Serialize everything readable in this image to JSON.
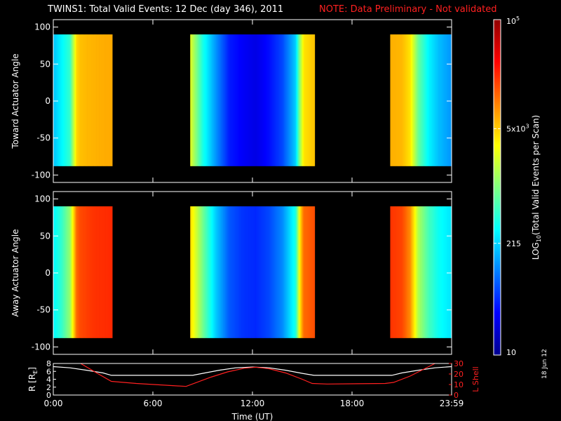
{
  "title": {
    "main": "TWINS1: Total Valid Events: 12 Dec (day 346), 2011",
    "note": "NOTE: Data Preliminary - Not validated"
  },
  "date_stamp": "18 Jun 12",
  "colors": {
    "note": "#ff2020",
    "r_line": "#ffffff",
    "l_shell_line": "#ff2020",
    "no_data": "#000000"
  },
  "chart_data": [
    {
      "type": "heatmap",
      "panel": "top",
      "ylabel": "Toward Actuator Angle",
      "ylim": [
        -110,
        110
      ],
      "yticks": [
        -100,
        -50,
        0,
        50,
        100
      ],
      "xlim": [
        0,
        24
      ],
      "x_unit": "hours",
      "y_data_range": [
        -88,
        90
      ],
      "data_intervals": [
        {
          "start": 0.0,
          "end": 3.55,
          "profile": [
            [
              0.0,
              180
            ],
            [
              0.5,
              300
            ],
            [
              1.0,
              500
            ],
            [
              1.4,
              4500
            ],
            [
              1.6,
              5500
            ],
            [
              2.0,
              6000
            ],
            [
              2.8,
              6500
            ],
            [
              3.55,
              6800
            ]
          ]
        },
        {
          "start": 8.25,
          "end": 15.75,
          "profile": [
            [
              8.25,
              2500
            ],
            [
              9.0,
              400
            ],
            [
              9.8,
              120
            ],
            [
              10.6,
              40
            ],
            [
              11.4,
              30
            ],
            [
              12.2,
              25
            ],
            [
              13.0,
              35
            ],
            [
              13.8,
              60
            ],
            [
              14.6,
              200
            ],
            [
              14.9,
              1500
            ],
            [
              15.1,
              4000
            ],
            [
              15.75,
              5500
            ]
          ]
        },
        {
          "start": 20.3,
          "end": 23.99,
          "profile": [
            [
              20.3,
              6500
            ],
            [
              21.0,
              6000
            ],
            [
              21.5,
              4000
            ],
            [
              22.0,
              800
            ],
            [
              22.6,
              300
            ],
            [
              23.2,
              180
            ],
            [
              23.99,
              120
            ]
          ]
        }
      ]
    },
    {
      "type": "heatmap",
      "panel": "bottom",
      "ylabel": "Away Actuator Angle",
      "ylim": [
        -110,
        110
      ],
      "yticks": [
        -100,
        -50,
        0,
        50,
        100
      ],
      "xlim": [
        0,
        24
      ],
      "x_unit": "hours",
      "y_data_range": [
        -88,
        90
      ],
      "data_intervals": [
        {
          "start": 0.0,
          "end": 3.55,
          "profile": [
            [
              0.0,
              300
            ],
            [
              0.5,
              500
            ],
            [
              1.0,
              1200
            ],
            [
              1.4,
              12000
            ],
            [
              1.6,
              16000
            ],
            [
              2.4,
              20000
            ],
            [
              3.55,
              22000
            ]
          ]
        },
        {
          "start": 8.25,
          "end": 15.75,
          "profile": [
            [
              8.25,
              4500
            ],
            [
              9.0,
              900
            ],
            [
              9.8,
              200
            ],
            [
              10.6,
              70
            ],
            [
              11.4,
              50
            ],
            [
              12.2,
              45
            ],
            [
              13.0,
              60
            ],
            [
              13.8,
              110
            ],
            [
              14.6,
              400
            ],
            [
              14.9,
              5000
            ],
            [
              15.1,
              12000
            ],
            [
              15.75,
              16000
            ]
          ]
        },
        {
          "start": 20.3,
          "end": 23.99,
          "profile": [
            [
              20.3,
              20000
            ],
            [
              21.0,
              17000
            ],
            [
              21.5,
              9000
            ],
            [
              22.0,
              1500
            ],
            [
              22.6,
              600
            ],
            [
              23.2,
              350
            ],
            [
              23.99,
              250
            ]
          ]
        }
      ]
    },
    {
      "type": "line",
      "panel": "orbit",
      "xlim": [
        0,
        24
      ],
      "xticks": [
        0,
        6,
        12,
        18,
        24
      ],
      "xticklabels": [
        "0:00",
        "6:00",
        "12:00",
        "18:00",
        "23:59"
      ],
      "xlabel": "Time (UT)",
      "left_axis": {
        "label": "R [R",
        "label_sub": "E",
        "label_end": "]",
        "ylim": [
          0,
          8
        ],
        "yticks": [
          0,
          2,
          4,
          6,
          8
        ]
      },
      "right_axis": {
        "label": "L Shell",
        "ylim": [
          0,
          30
        ],
        "yticks": [
          0,
          10,
          20,
          30
        ]
      },
      "series": [
        {
          "axis": "left",
          "color": "#ffffff",
          "x": [
            0,
            1,
            2,
            3,
            3.5,
            8.4,
            9,
            10,
            11,
            12,
            13,
            14,
            15,
            15.7,
            20.4,
            21,
            22,
            23,
            23.99
          ],
          "y": [
            7.2,
            6.9,
            6.3,
            5.6,
            5.0,
            5.0,
            5.5,
            6.3,
            6.9,
            7.1,
            6.9,
            6.3,
            5.5,
            5.0,
            5.0,
            5.6,
            6.3,
            6.9,
            7.2
          ]
        },
        {
          "axis": "right",
          "color": "#ff2020",
          "x": [
            1.65,
            2.5,
            3.5,
            5.0,
            8.0,
            9.5,
            10.5,
            11.5,
            12.2,
            13.0,
            14.0,
            15.0,
            15.6,
            16.5,
            20.0,
            20.5,
            21.5,
            22.5,
            23.0
          ],
          "y": [
            30,
            22,
            13,
            11,
            8.2,
            17,
            22,
            25.5,
            26.5,
            25,
            21,
            15,
            11,
            10.5,
            11,
            12,
            18,
            26,
            30
          ]
        }
      ]
    }
  ],
  "colorbar": {
    "label": "LOG",
    "label_sub": "10",
    "label_end": "(Total Valid Events per Scan)",
    "min": 10,
    "max": 100000,
    "scale": "log",
    "ticks": [
      {
        "value": 10,
        "text": "10",
        "sup": ""
      },
      {
        "value": 215,
        "text": "215",
        "sup": ""
      },
      {
        "value": 5000,
        "text": "5x10",
        "sup": "3"
      },
      {
        "value": 100000,
        "text": "10",
        "sup": "5"
      }
    ]
  }
}
